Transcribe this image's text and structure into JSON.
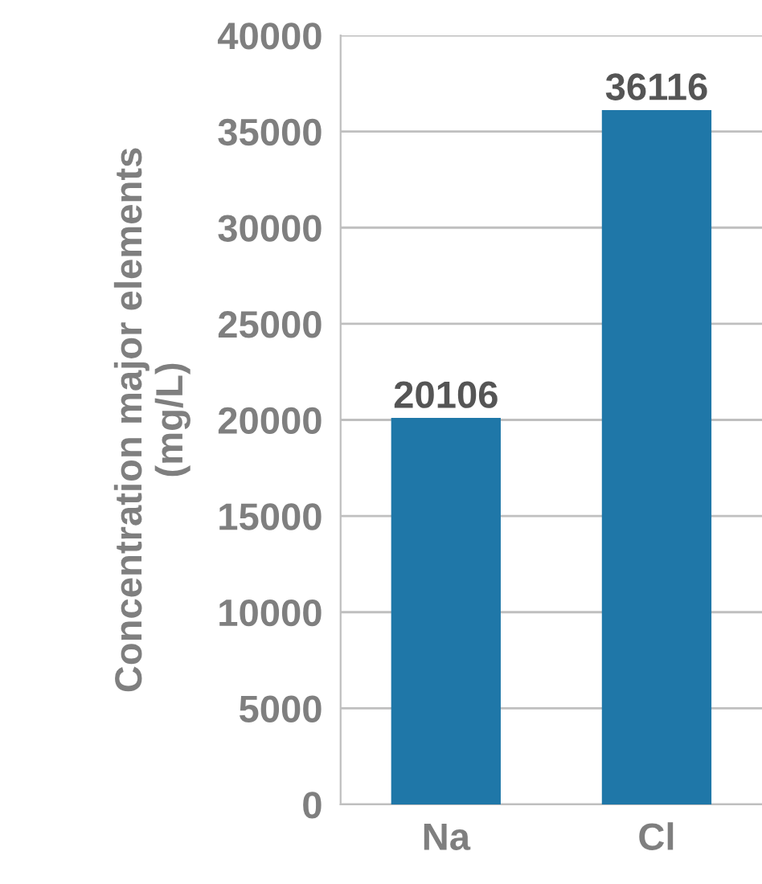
{
  "chart_data": {
    "type": "bar",
    "ylabel": "Concentration major elements\n(mg/L)",
    "categories": [
      "Na",
      "Cl"
    ],
    "values": [
      20106,
      36116
    ],
    "color": "#1f77a8",
    "ylim": [
      0,
      40000
    ],
    "yticks": [
      0,
      5000,
      10000,
      15000,
      20000,
      25000,
      30000,
      35000,
      40000
    ],
    "grid": "y",
    "data_labels": true
  }
}
